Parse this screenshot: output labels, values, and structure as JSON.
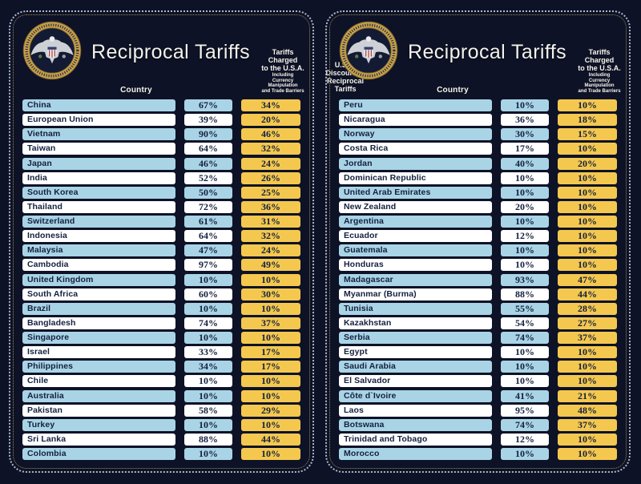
{
  "title": "Reciprocal Tariffs",
  "header": {
    "country_label": "Country",
    "charged_line1": "Tariffs Charged",
    "charged_line2": "to the U.S.A.",
    "charged_sub": [
      "Including",
      "Currency Manipulation",
      "and Trade Barriers"
    ],
    "discount_line1": "U.S.A. Discounted",
    "discount_line2": "Reciprocal Tariffs"
  },
  "colors": {
    "background": "#0d1227",
    "row_blue": "#a9d4e6",
    "row_white": "#ffffff",
    "accent_gold": "#f4c84f",
    "text_navy": "#14203e",
    "seal_gold": "#c9a24b",
    "outer_border": "#cdd6e8",
    "inner_border": "#9d8952"
  },
  "icons": {
    "seal": "presidential-seal"
  },
  "chart_data": {
    "type": "table",
    "title": "Reciprocal Tariffs",
    "columns": [
      "Country",
      "Tariffs Charged to the U.S.A. Including Currency Manipulation and Trade Barriers",
      "U.S.A. Discounted Reciprocal Tariffs"
    ],
    "panels": [
      {
        "rows": [
          [
            "China",
            "67%",
            "34%"
          ],
          [
            "European Union",
            "39%",
            "20%"
          ],
          [
            "Vietnam",
            "90%",
            "46%"
          ],
          [
            "Taiwan",
            "64%",
            "32%"
          ],
          [
            "Japan",
            "46%",
            "24%"
          ],
          [
            "India",
            "52%",
            "26%"
          ],
          [
            "South Korea",
            "50%",
            "25%"
          ],
          [
            "Thailand",
            "72%",
            "36%"
          ],
          [
            "Switzerland",
            "61%",
            "31%"
          ],
          [
            "Indonesia",
            "64%",
            "32%"
          ],
          [
            "Malaysia",
            "47%",
            "24%"
          ],
          [
            "Cambodia",
            "97%",
            "49%"
          ],
          [
            "United Kingdom",
            "10%",
            "10%"
          ],
          [
            "South Africa",
            "60%",
            "30%"
          ],
          [
            "Brazil",
            "10%",
            "10%"
          ],
          [
            "Bangladesh",
            "74%",
            "37%"
          ],
          [
            "Singapore",
            "10%",
            "10%"
          ],
          [
            "Israel",
            "33%",
            "17%"
          ],
          [
            "Philippines",
            "34%",
            "17%"
          ],
          [
            "Chile",
            "10%",
            "10%"
          ],
          [
            "Australia",
            "10%",
            "10%"
          ],
          [
            "Pakistan",
            "58%",
            "29%"
          ],
          [
            "Turkey",
            "10%",
            "10%"
          ],
          [
            "Sri Lanka",
            "88%",
            "44%"
          ],
          [
            "Colombia",
            "10%",
            "10%"
          ]
        ]
      },
      {
        "rows": [
          [
            "Peru",
            "10%",
            "10%"
          ],
          [
            "Nicaragua",
            "36%",
            "18%"
          ],
          [
            "Norway",
            "30%",
            "15%"
          ],
          [
            "Costa Rica",
            "17%",
            "10%"
          ],
          [
            "Jordan",
            "40%",
            "20%"
          ],
          [
            "Dominican Republic",
            "10%",
            "10%"
          ],
          [
            "United Arab Emirates",
            "10%",
            "10%"
          ],
          [
            "New Zealand",
            "20%",
            "10%"
          ],
          [
            "Argentina",
            "10%",
            "10%"
          ],
          [
            "Ecuador",
            "12%",
            "10%"
          ],
          [
            "Guatemala",
            "10%",
            "10%"
          ],
          [
            "Honduras",
            "10%",
            "10%"
          ],
          [
            "Madagascar",
            "93%",
            "47%"
          ],
          [
            "Myanmar (Burma)",
            "88%",
            "44%"
          ],
          [
            "Tunisia",
            "55%",
            "28%"
          ],
          [
            "Kazakhstan",
            "54%",
            "27%"
          ],
          [
            "Serbia",
            "74%",
            "37%"
          ],
          [
            "Egypt",
            "10%",
            "10%"
          ],
          [
            "Saudi Arabia",
            "10%",
            "10%"
          ],
          [
            "El Salvador",
            "10%",
            "10%"
          ],
          [
            "Côte d`Ivoire",
            "41%",
            "21%"
          ],
          [
            "Laos",
            "95%",
            "48%"
          ],
          [
            "Botswana",
            "74%",
            "37%"
          ],
          [
            "Trinidad and Tobago",
            "12%",
            "10%"
          ],
          [
            "Morocco",
            "10%",
            "10%"
          ]
        ]
      }
    ]
  }
}
